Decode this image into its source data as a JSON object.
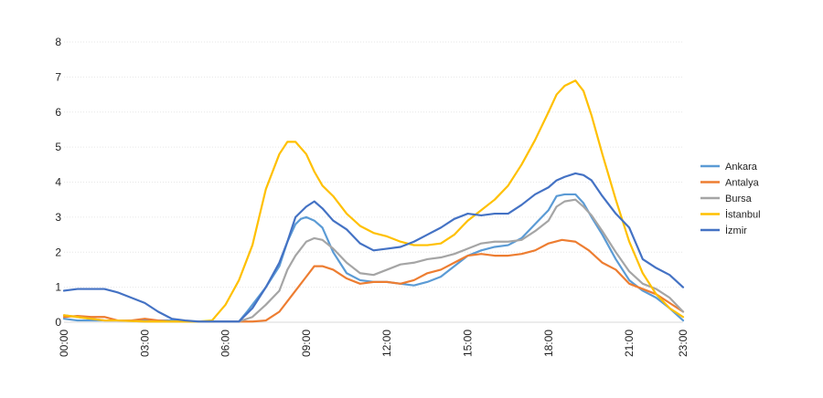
{
  "chart_data": {
    "type": "line",
    "title": "",
    "xlabel": "",
    "ylabel": "",
    "ylim": [
      0,
      8
    ],
    "yticks": [
      0,
      1,
      2,
      3,
      4,
      5,
      6,
      7,
      8
    ],
    "x_range": [
      0,
      23
    ],
    "x_ticks": [
      {
        "value": 0,
        "label": "00:00"
      },
      {
        "value": 3,
        "label": "03:00"
      },
      {
        "value": 6,
        "label": "06:00"
      },
      {
        "value": 9,
        "label": "09:00"
      },
      {
        "value": 12,
        "label": "12:00"
      },
      {
        "value": 15,
        "label": "15:00"
      },
      {
        "value": 18,
        "label": "18:00"
      },
      {
        "value": 21,
        "label": "21:00"
      },
      {
        "value": 23,
        "label": "23:00"
      }
    ],
    "grid": "horizontal",
    "legend_position": "right",
    "x_unit": "hour",
    "series": [
      {
        "name": "Ankara",
        "color": "#5b9bd5",
        "points": [
          [
            0,
            0.1
          ],
          [
            0.5,
            0.05
          ],
          [
            1,
            0.05
          ],
          [
            1.5,
            0.05
          ],
          [
            2,
            0.05
          ],
          [
            2.5,
            0.05
          ],
          [
            3,
            0.05
          ],
          [
            3.5,
            0.05
          ],
          [
            4,
            0.05
          ],
          [
            4.5,
            0.02
          ],
          [
            5,
            0.02
          ],
          [
            5.5,
            0.02
          ],
          [
            6,
            0.02
          ],
          [
            6.5,
            0.02
          ],
          [
            6.8,
            0.3
          ],
          [
            7,
            0.5
          ],
          [
            7.5,
            1.0
          ],
          [
            8,
            1.6
          ],
          [
            8.3,
            2.3
          ],
          [
            8.6,
            2.8
          ],
          [
            8.8,
            2.95
          ],
          [
            9,
            3.0
          ],
          [
            9.3,
            2.9
          ],
          [
            9.6,
            2.7
          ],
          [
            10,
            2.0
          ],
          [
            10.5,
            1.4
          ],
          [
            11,
            1.2
          ],
          [
            11.5,
            1.15
          ],
          [
            12,
            1.15
          ],
          [
            12.5,
            1.1
          ],
          [
            13,
            1.05
          ],
          [
            13.5,
            1.15
          ],
          [
            14,
            1.3
          ],
          [
            14.5,
            1.6
          ],
          [
            15,
            1.9
          ],
          [
            15.5,
            2.05
          ],
          [
            16,
            2.15
          ],
          [
            16.5,
            2.2
          ],
          [
            17,
            2.4
          ],
          [
            17.5,
            2.8
          ],
          [
            18,
            3.2
          ],
          [
            18.3,
            3.6
          ],
          [
            18.6,
            3.65
          ],
          [
            19,
            3.65
          ],
          [
            19.3,
            3.4
          ],
          [
            19.6,
            3.0
          ],
          [
            20,
            2.5
          ],
          [
            20.5,
            1.8
          ],
          [
            21,
            1.2
          ],
          [
            21.5,
            0.9
          ],
          [
            22,
            0.7
          ],
          [
            22.5,
            0.4
          ],
          [
            23,
            0.05
          ]
        ]
      },
      {
        "name": "Antalya",
        "color": "#ed7d31",
        "points": [
          [
            0,
            0.15
          ],
          [
            0.5,
            0.18
          ],
          [
            1,
            0.15
          ],
          [
            1.5,
            0.15
          ],
          [
            2,
            0.05
          ],
          [
            2.5,
            0.05
          ],
          [
            3,
            0.1
          ],
          [
            3.5,
            0.05
          ],
          [
            4,
            0.02
          ],
          [
            5,
            0.02
          ],
          [
            6,
            0.02
          ],
          [
            6.5,
            0.02
          ],
          [
            7,
            0.02
          ],
          [
            7.5,
            0.05
          ],
          [
            8,
            0.3
          ],
          [
            8.5,
            0.8
          ],
          [
            9,
            1.3
          ],
          [
            9.3,
            1.6
          ],
          [
            9.6,
            1.6
          ],
          [
            10,
            1.5
          ],
          [
            10.5,
            1.25
          ],
          [
            11,
            1.1
          ],
          [
            11.5,
            1.15
          ],
          [
            12,
            1.15
          ],
          [
            12.5,
            1.1
          ],
          [
            13,
            1.2
          ],
          [
            13.5,
            1.4
          ],
          [
            14,
            1.5
          ],
          [
            14.5,
            1.7
          ],
          [
            15,
            1.9
          ],
          [
            15.5,
            1.95
          ],
          [
            16,
            1.9
          ],
          [
            16.5,
            1.9
          ],
          [
            17,
            1.95
          ],
          [
            17.5,
            2.05
          ],
          [
            18,
            2.25
          ],
          [
            18.5,
            2.35
          ],
          [
            19,
            2.3
          ],
          [
            19.5,
            2.05
          ],
          [
            20,
            1.7
          ],
          [
            20.5,
            1.5
          ],
          [
            21,
            1.1
          ],
          [
            21.5,
            0.95
          ],
          [
            22,
            0.8
          ],
          [
            22.5,
            0.55
          ],
          [
            23,
            0.3
          ]
        ]
      },
      {
        "name": "Bursa",
        "color": "#a5a5a5",
        "points": [
          [
            0,
            0.2
          ],
          [
            0.5,
            0.15
          ],
          [
            1,
            0.1
          ],
          [
            1.5,
            0.05
          ],
          [
            2,
            0.05
          ],
          [
            3,
            0.02
          ],
          [
            4,
            0.02
          ],
          [
            5,
            0.02
          ],
          [
            6,
            0.02
          ],
          [
            6.5,
            0.02
          ],
          [
            7,
            0.15
          ],
          [
            7.5,
            0.5
          ],
          [
            8,
            0.9
          ],
          [
            8.3,
            1.5
          ],
          [
            8.6,
            1.9
          ],
          [
            9,
            2.3
          ],
          [
            9.3,
            2.4
          ],
          [
            9.6,
            2.35
          ],
          [
            10,
            2.1
          ],
          [
            10.5,
            1.7
          ],
          [
            11,
            1.4
          ],
          [
            11.5,
            1.35
          ],
          [
            12,
            1.5
          ],
          [
            12.5,
            1.65
          ],
          [
            13,
            1.7
          ],
          [
            13.5,
            1.8
          ],
          [
            14,
            1.85
          ],
          [
            14.5,
            1.95
          ],
          [
            15,
            2.1
          ],
          [
            15.5,
            2.25
          ],
          [
            16,
            2.3
          ],
          [
            16.5,
            2.3
          ],
          [
            17,
            2.35
          ],
          [
            17.5,
            2.6
          ],
          [
            18,
            2.9
          ],
          [
            18.3,
            3.3
          ],
          [
            18.6,
            3.45
          ],
          [
            19,
            3.5
          ],
          [
            19.3,
            3.3
          ],
          [
            19.6,
            3.05
          ],
          [
            20,
            2.6
          ],
          [
            20.5,
            2.0
          ],
          [
            21,
            1.45
          ],
          [
            21.5,
            1.1
          ],
          [
            22,
            0.95
          ],
          [
            22.5,
            0.7
          ],
          [
            23,
            0.3
          ]
        ]
      },
      {
        "name": "İstanbul",
        "color": "#ffc000",
        "points": [
          [
            0,
            0.2
          ],
          [
            0.5,
            0.15
          ],
          [
            1,
            0.1
          ],
          [
            1.5,
            0.05
          ],
          [
            2,
            0.05
          ],
          [
            3,
            0.02
          ],
          [
            4,
            0.02
          ],
          [
            5,
            0.02
          ],
          [
            5.5,
            0.05
          ],
          [
            6,
            0.5
          ],
          [
            6.5,
            1.2
          ],
          [
            7,
            2.2
          ],
          [
            7.5,
            3.8
          ],
          [
            8,
            4.8
          ],
          [
            8.3,
            5.15
          ],
          [
            8.6,
            5.15
          ],
          [
            9,
            4.8
          ],
          [
            9.3,
            4.3
          ],
          [
            9.6,
            3.9
          ],
          [
            10,
            3.6
          ],
          [
            10.5,
            3.1
          ],
          [
            11,
            2.75
          ],
          [
            11.5,
            2.55
          ],
          [
            12,
            2.45
          ],
          [
            12.5,
            2.3
          ],
          [
            13,
            2.2
          ],
          [
            13.5,
            2.2
          ],
          [
            14,
            2.25
          ],
          [
            14.5,
            2.5
          ],
          [
            15,
            2.9
          ],
          [
            15.5,
            3.2
          ],
          [
            16,
            3.5
          ],
          [
            16.5,
            3.9
          ],
          [
            17,
            4.5
          ],
          [
            17.5,
            5.2
          ],
          [
            18,
            6.0
          ],
          [
            18.3,
            6.5
          ],
          [
            18.6,
            6.75
          ],
          [
            19,
            6.9
          ],
          [
            19.3,
            6.6
          ],
          [
            19.6,
            5.9
          ],
          [
            20,
            4.8
          ],
          [
            20.5,
            3.5
          ],
          [
            21,
            2.3
          ],
          [
            21.5,
            1.4
          ],
          [
            22,
            0.8
          ],
          [
            22.5,
            0.4
          ],
          [
            23,
            0.15
          ]
        ]
      },
      {
        "name": "İzmir",
        "color": "#4472c4",
        "points": [
          [
            0,
            0.9
          ],
          [
            0.5,
            0.95
          ],
          [
            1,
            0.95
          ],
          [
            1.5,
            0.95
          ],
          [
            2,
            0.85
          ],
          [
            2.5,
            0.7
          ],
          [
            3,
            0.55
          ],
          [
            3.5,
            0.3
          ],
          [
            4,
            0.1
          ],
          [
            4.5,
            0.05
          ],
          [
            5,
            0.02
          ],
          [
            6,
            0.02
          ],
          [
            6.5,
            0.02
          ],
          [
            7,
            0.4
          ],
          [
            7.5,
            1.0
          ],
          [
            8,
            1.7
          ],
          [
            8.3,
            2.3
          ],
          [
            8.6,
            3.0
          ],
          [
            9,
            3.3
          ],
          [
            9.3,
            3.45
          ],
          [
            9.6,
            3.25
          ],
          [
            10,
            2.9
          ],
          [
            10.5,
            2.65
          ],
          [
            11,
            2.25
          ],
          [
            11.5,
            2.05
          ],
          [
            12,
            2.1
          ],
          [
            12.5,
            2.15
          ],
          [
            13,
            2.3
          ],
          [
            13.5,
            2.5
          ],
          [
            14,
            2.7
          ],
          [
            14.5,
            2.95
          ],
          [
            15,
            3.1
          ],
          [
            15.5,
            3.05
          ],
          [
            16,
            3.1
          ],
          [
            16.5,
            3.1
          ],
          [
            17,
            3.35
          ],
          [
            17.5,
            3.65
          ],
          [
            18,
            3.85
          ],
          [
            18.3,
            4.05
          ],
          [
            18.6,
            4.15
          ],
          [
            19,
            4.25
          ],
          [
            19.3,
            4.2
          ],
          [
            19.6,
            4.05
          ],
          [
            20,
            3.6
          ],
          [
            20.5,
            3.1
          ],
          [
            21,
            2.7
          ],
          [
            21.5,
            1.8
          ],
          [
            22,
            1.55
          ],
          [
            22.5,
            1.35
          ],
          [
            23,
            1.0
          ]
        ]
      }
    ]
  }
}
